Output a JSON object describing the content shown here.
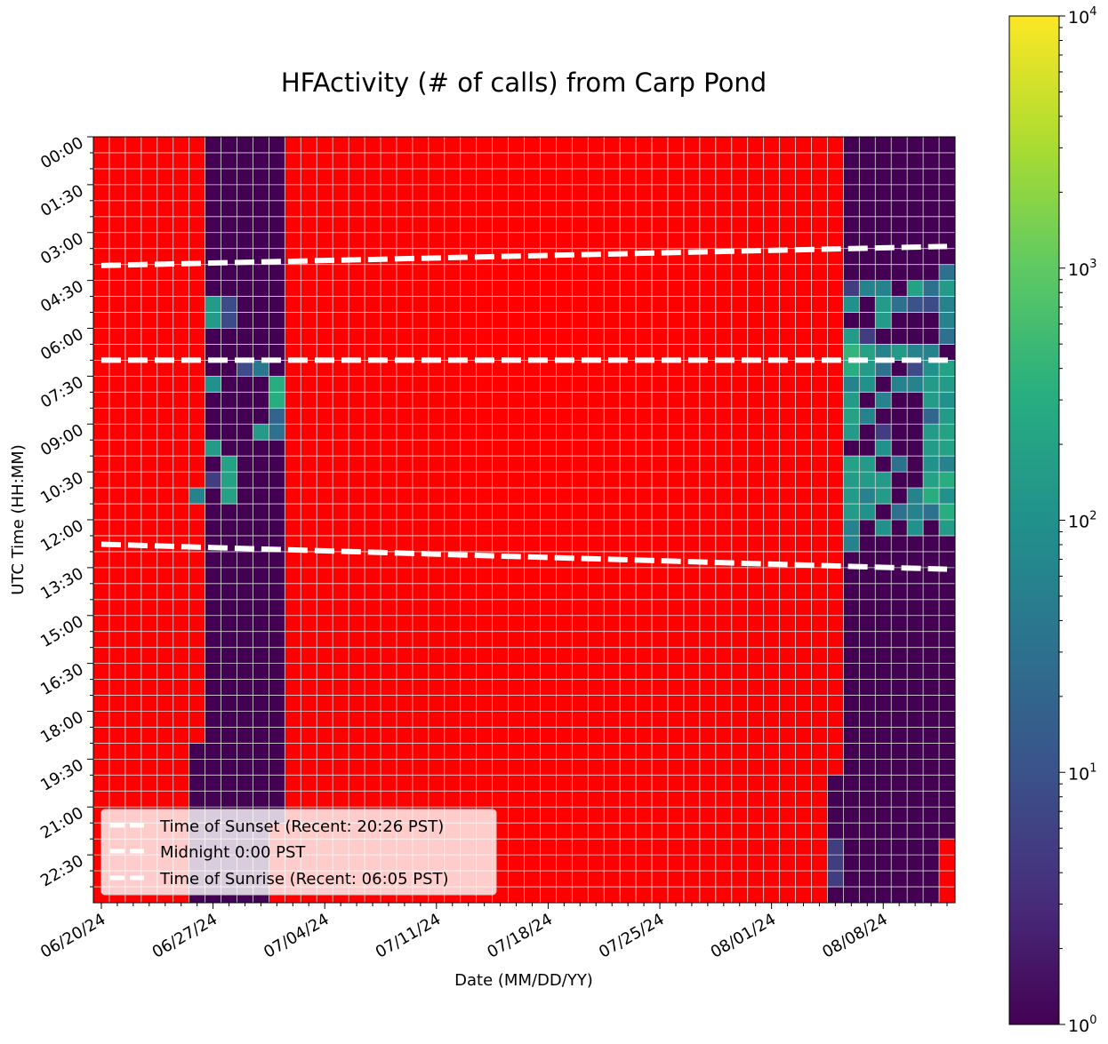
{
  "chart_data": {
    "type": "heatmap",
    "title": "HFActivity (# of calls) from Carp Pond",
    "xlabel": "Date (MM/DD/YY)",
    "ylabel": "UTC Time (HH:MM)",
    "x_tick_labels": [
      "06/20/24",
      "06/27/24",
      "07/04/24",
      "07/11/24",
      "07/18/24",
      "07/25/24",
      "08/01/24",
      "08/08/24"
    ],
    "y_tick_labels": [
      "00:00",
      "01:30",
      "03:00",
      "04:30",
      "06:00",
      "07:30",
      "09:00",
      "10:30",
      "12:00",
      "13:30",
      "15:00",
      "16:30",
      "18:00",
      "19:30",
      "21:00",
      "22:30"
    ],
    "date_range": [
      "06/20/24",
      "08/12/24"
    ],
    "time_bin_minutes": 30,
    "grid": true,
    "no_data_color": "#ff0000",
    "colorbar": {
      "scale": "log",
      "range": [
        1,
        10000
      ],
      "tick_labels": [
        {
          "base": "10",
          "exp": "0"
        },
        {
          "base": "10",
          "exp": "1"
        },
        {
          "base": "10",
          "exp": "2"
        },
        {
          "base": "10",
          "exp": "3"
        },
        {
          "base": "10",
          "exp": "4"
        }
      ],
      "colormap": "viridis"
    },
    "legend": {
      "placement": "lower-left",
      "entries": [
        "Time of Sunset (Recent: 20:26 PST)",
        "Midnight 0:00 PST",
        "Time of Sunrise (Recent: 06:05 PST)"
      ]
    },
    "lines": {
      "sunset_utc": {
        "start": "04:02",
        "end": "03:26"
      },
      "midnight_utc": "07:00",
      "sunrise_utc": {
        "start": "12:46",
        "end": "13:33"
      }
    },
    "cells": [
      {
        "date": "06/27/24",
        "time": "05:00",
        "value": 150
      },
      {
        "date": "06/27/24",
        "time": "05:30",
        "value": 150
      },
      {
        "date": "06/28/24",
        "time": "05:00",
        "value": 8
      },
      {
        "date": "06/28/24",
        "time": "05:30",
        "value": 8
      },
      {
        "date": "06/27/24",
        "time": "07:30",
        "value": 100
      },
      {
        "date": "06/29/24",
        "time": "07:00",
        "value": 8
      },
      {
        "date": "06/30/24",
        "time": "07:00",
        "value": 40
      },
      {
        "date": "07/01/24",
        "time": "07:30",
        "value": 300
      },
      {
        "date": "07/01/24",
        "time": "08:00",
        "value": 300
      },
      {
        "date": "07/01/24",
        "time": "08:30",
        "value": 20
      },
      {
        "date": "07/01/24",
        "time": "09:00",
        "value": 30
      },
      {
        "date": "06/30/24",
        "time": "09:00",
        "value": 150
      },
      {
        "date": "06/27/24",
        "time": "09:30",
        "value": 150
      },
      {
        "date": "06/27/24",
        "time": "10:30",
        "value": 5
      },
      {
        "date": "06/28/24",
        "time": "10:00",
        "value": 200
      },
      {
        "date": "06/28/24",
        "time": "10:30",
        "value": 200
      },
      {
        "date": "06/28/24",
        "time": "11:00",
        "value": 200
      },
      {
        "date": "06/26/24",
        "time": "11:00",
        "value": 60
      },
      {
        "date": "08/06/24",
        "time": "04:30",
        "value": 5
      },
      {
        "date": "08/07/24",
        "time": "04:30",
        "value": 60
      },
      {
        "date": "08/08/24",
        "time": "04:30",
        "value": 60
      },
      {
        "date": "08/10/24",
        "time": "04:30",
        "value": 200
      },
      {
        "date": "08/11/24",
        "time": "04:30",
        "value": 30
      },
      {
        "date": "08/12/24",
        "time": "04:30",
        "value": 150
      },
      {
        "date": "08/12/24",
        "time": "04:00",
        "value": 30
      },
      {
        "date": "08/06/24",
        "time": "05:00",
        "value": 100
      },
      {
        "date": "08/08/24",
        "time": "05:00",
        "value": 150
      },
      {
        "date": "08/09/24",
        "time": "05:00",
        "value": 30
      },
      {
        "date": "08/10/24",
        "time": "05:00",
        "value": 10
      },
      {
        "date": "08/11/24",
        "time": "05:00",
        "value": 8
      },
      {
        "date": "08/12/24",
        "time": "05:00",
        "value": 60
      },
      {
        "date": "08/08/24",
        "time": "05:30",
        "value": 150
      },
      {
        "date": "08/12/24",
        "time": "05:30",
        "value": 60
      },
      {
        "date": "08/12/24",
        "time": "06:00",
        "value": 30
      },
      {
        "date": "08/06/24",
        "time": "06:00",
        "value": 150
      },
      {
        "date": "08/07/24",
        "time": "06:00",
        "value": 5
      },
      {
        "date": "08/06/24",
        "time": "06:30",
        "value": 400
      },
      {
        "date": "08/07/24",
        "time": "06:30",
        "value": 200
      },
      {
        "date": "08/08/24",
        "time": "06:30",
        "value": 60
      },
      {
        "date": "08/09/24",
        "time": "06:30",
        "value": 150
      },
      {
        "date": "08/10/24",
        "time": "06:30",
        "value": 60
      },
      {
        "date": "08/11/24",
        "time": "06:30",
        "value": 60
      },
      {
        "date": "08/06/24",
        "time": "07:00",
        "value": 300
      },
      {
        "date": "08/07/24",
        "time": "07:00",
        "value": 150
      },
      {
        "date": "08/08/24",
        "time": "07:00",
        "value": 30
      },
      {
        "date": "08/10/24",
        "time": "07:00",
        "value": 8
      },
      {
        "date": "08/11/24",
        "time": "07:00",
        "value": 100
      },
      {
        "date": "08/12/24",
        "time": "07:00",
        "value": 200
      },
      {
        "date": "08/06/24",
        "time": "07:30",
        "value": 60
      },
      {
        "date": "08/07/24",
        "time": "07:30",
        "value": 100
      },
      {
        "date": "08/09/24",
        "time": "07:30",
        "value": 60
      },
      {
        "date": "08/10/24",
        "time": "07:30",
        "value": 60
      },
      {
        "date": "08/11/24",
        "time": "07:30",
        "value": 150
      },
      {
        "date": "08/12/24",
        "time": "07:30",
        "value": 150
      },
      {
        "date": "08/06/24",
        "time": "08:00",
        "value": 150
      },
      {
        "date": "08/08/24",
        "time": "08:00",
        "value": 60
      },
      {
        "date": "08/11/24",
        "time": "08:00",
        "value": 150
      },
      {
        "date": "08/12/24",
        "time": "08:00",
        "value": 100
      },
      {
        "date": "08/06/24",
        "time": "08:30",
        "value": 200
      },
      {
        "date": "08/07/24",
        "time": "08:30",
        "value": 60
      },
      {
        "date": "08/11/24",
        "time": "08:30",
        "value": 20
      },
      {
        "date": "08/12/24",
        "time": "08:30",
        "value": 150
      },
      {
        "date": "08/06/24",
        "time": "09:00",
        "value": 150
      },
      {
        "date": "08/08/24",
        "time": "09:00",
        "value": 5
      },
      {
        "date": "08/12/24",
        "time": "09:00",
        "value": 200
      },
      {
        "date": "08/11/24",
        "time": "09:00",
        "value": 150
      },
      {
        "date": "08/08/24",
        "time": "09:30",
        "value": 100
      },
      {
        "date": "08/11/24",
        "time": "09:30",
        "value": 150
      },
      {
        "date": "08/12/24",
        "time": "09:30",
        "value": 200
      },
      {
        "date": "08/06/24",
        "time": "10:00",
        "value": 200
      },
      {
        "date": "08/07/24",
        "time": "10:00",
        "value": 150
      },
      {
        "date": "08/09/24",
        "time": "10:00",
        "value": 30
      },
      {
        "date": "08/11/24",
        "time": "10:00",
        "value": 100
      },
      {
        "date": "08/12/24",
        "time": "10:00",
        "value": 60
      },
      {
        "date": "08/06/24",
        "time": "10:30",
        "value": 150
      },
      {
        "date": "08/07/24",
        "time": "10:30",
        "value": 150
      },
      {
        "date": "08/08/24",
        "time": "10:30",
        "value": 150
      },
      {
        "date": "08/11/24",
        "time": "10:30",
        "value": 200
      },
      {
        "date": "08/12/24",
        "time": "10:30",
        "value": 300
      },
      {
        "date": "08/06/24",
        "time": "11:00",
        "value": 150
      },
      {
        "date": "08/07/24",
        "time": "11:00",
        "value": 60
      },
      {
        "date": "08/08/24",
        "time": "11:00",
        "value": 150
      },
      {
        "date": "08/10/24",
        "time": "11:00",
        "value": 60
      },
      {
        "date": "08/11/24",
        "time": "11:00",
        "value": 300
      },
      {
        "date": "08/12/24",
        "time": "11:00",
        "value": 100
      },
      {
        "date": "08/06/24",
        "time": "11:30",
        "value": 150
      },
      {
        "date": "08/07/24",
        "time": "11:30",
        "value": 100
      },
      {
        "date": "08/09/24",
        "time": "11:30",
        "value": 30
      },
      {
        "date": "08/10/24",
        "time": "11:30",
        "value": 60
      },
      {
        "date": "08/11/24",
        "time": "11:30",
        "value": 30
      },
      {
        "date": "08/12/24",
        "time": "11:30",
        "value": 300
      },
      {
        "date": "08/06/24",
        "time": "12:00",
        "value": 60
      },
      {
        "date": "08/08/24",
        "time": "12:00",
        "value": 100
      },
      {
        "date": "08/10/24",
        "time": "12:00",
        "value": 100
      },
      {
        "date": "08/12/24",
        "time": "12:00",
        "value": 150
      },
      {
        "date": "08/06/24",
        "time": "12:30",
        "value": 60
      },
      {
        "date": "08/05/24",
        "time": "22:00",
        "value": 5
      },
      {
        "date": "08/05/24",
        "time": "22:30",
        "value": 5
      },
      {
        "date": "08/05/24",
        "time": "23:00",
        "value": 5
      }
    ]
  }
}
